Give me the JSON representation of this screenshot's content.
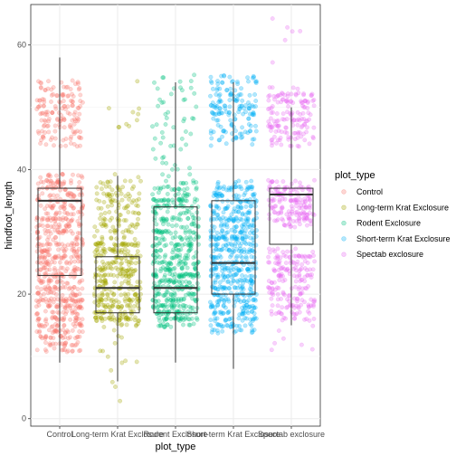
{
  "chart_data": {
    "type": "boxplot",
    "xlabel": "plot_type",
    "ylabel": "hindfoot_length",
    "ylim": [
      0,
      66
    ],
    "yticks": [
      0,
      20,
      40,
      60
    ],
    "grid": true,
    "legend": {
      "title": "plot_type",
      "position": "right"
    },
    "categories": [
      "Control",
      "Long-term Krat Exclosure",
      "Rodent Exclosure",
      "Short-term Krat Exclosure",
      "Spectab exclosure"
    ],
    "colors": [
      "#F8766D",
      "#A3A500",
      "#00BF7D",
      "#00B0F6",
      "#E76BF3"
    ],
    "boxes": [
      {
        "name": "Control",
        "min": 9,
        "q1": 23,
        "median": 35,
        "q3": 37,
        "max": 58
      },
      {
        "name": "Long-term Krat Exclosure",
        "min": 6,
        "q1": 17,
        "median": 21,
        "q3": 26,
        "max": 39
      },
      {
        "name": "Rodent Exclosure",
        "min": 9,
        "q1": 17,
        "median": 21,
        "q3": 34,
        "max": 54
      },
      {
        "name": "Short-term Krat Exclosure",
        "min": 8,
        "q1": 20,
        "median": 25,
        "q3": 35,
        "max": 54
      },
      {
        "name": "Spectab exclosure",
        "min": 15,
        "q1": 28,
        "median": 36,
        "q3": 37,
        "max": 50
      }
    ],
    "point_clusters": [
      [
        {
          "lo": 11,
          "hi": 22,
          "n": 260
        },
        {
          "lo": 22,
          "hi": 39,
          "n": 380
        },
        {
          "lo": 44,
          "hi": 54,
          "n": 150
        }
      ],
      [
        {
          "lo": 15,
          "hi": 29,
          "n": 340
        },
        {
          "lo": 29,
          "hi": 39,
          "n": 120
        },
        {
          "lo": 2,
          "hi": 15,
          "n": 14
        },
        {
          "lo": 45,
          "hi": 54,
          "n": 10
        }
      ],
      [
        {
          "lo": 15,
          "hi": 25,
          "n": 300
        },
        {
          "lo": 25,
          "hi": 38,
          "n": 260
        },
        {
          "lo": 39,
          "hi": 55,
          "n": 55
        }
      ],
      [
        {
          "lo": 14,
          "hi": 26,
          "n": 300
        },
        {
          "lo": 26,
          "hi": 38,
          "n": 300
        },
        {
          "lo": 44,
          "hi": 55,
          "n": 160
        }
      ],
      [
        {
          "lo": 16,
          "hi": 27,
          "n": 190
        },
        {
          "lo": 31,
          "hi": 38,
          "n": 170
        },
        {
          "lo": 44,
          "hi": 53,
          "n": 150
        },
        {
          "lo": 10,
          "hi": 16,
          "n": 8
        },
        {
          "lo": 55,
          "hi": 64,
          "n": 6
        }
      ]
    ]
  }
}
